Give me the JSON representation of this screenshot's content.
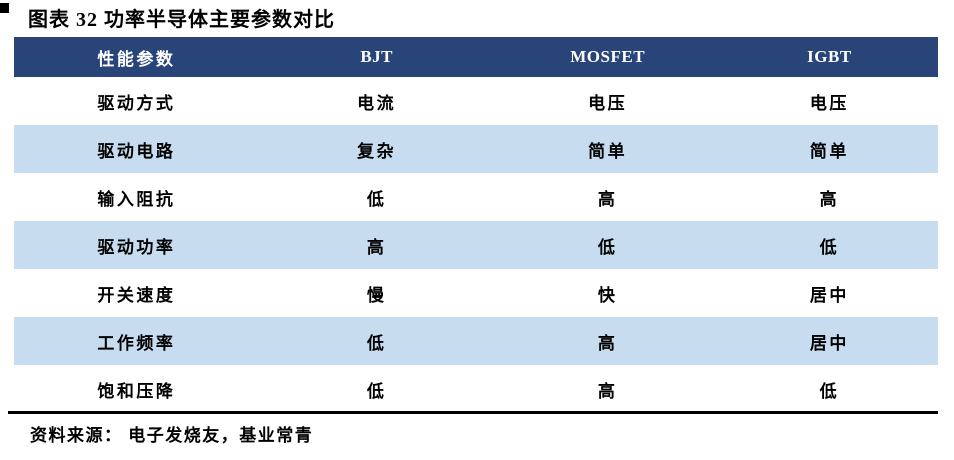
{
  "colors": {
    "header_bg": "#284478",
    "stripe": "#c7ddef",
    "header_text": "#ffffff",
    "body_text": "#000000"
  },
  "chart_data": {
    "type": "table",
    "title": "图表 32 功率半导体主要参数对比",
    "columns": [
      "性能参数",
      "BJT",
      "MOSFET",
      "IGBT"
    ],
    "rows": [
      [
        "驱动方式",
        "电流",
        "电压",
        "电压"
      ],
      [
        "驱动电路",
        "复杂",
        "简单",
        "简单"
      ],
      [
        "输入阻抗",
        "低",
        "高",
        "高"
      ],
      [
        "驱动功率",
        "高",
        "低",
        "低"
      ],
      [
        "开关速度",
        "慢",
        "快",
        "居中"
      ],
      [
        "工作频率",
        "低",
        "高",
        "居中"
      ],
      [
        "饱和压降",
        "低",
        "高",
        "低"
      ]
    ],
    "source": "资料来源： 电子发烧友，基业常青",
    "layout": {
      "stripe_pattern": "even rows shaded light blue",
      "header_style": "navy background, white text",
      "grid": "off"
    }
  }
}
